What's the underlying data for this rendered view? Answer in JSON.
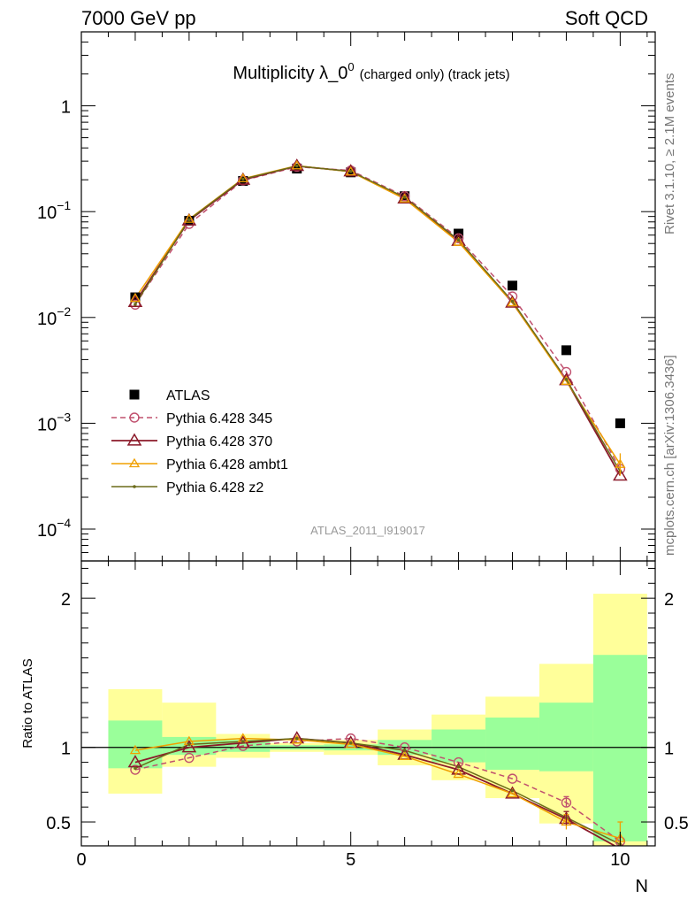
{
  "header": {
    "energy_label": "7000 GeV pp",
    "category_label": "Soft QCD"
  },
  "side_labels": {
    "rivet": "Rivet 3.1.10, ≥ 2.1M events",
    "mcplots": "mcplots.cern.ch [arXiv:1306.3436]"
  },
  "analysis_id": "ATLAS_2011_I919017",
  "colors": {
    "atlas": "#000000",
    "p345": "#c0506e",
    "p370": "#8b1a2a",
    "ambt1": "#f0a000",
    "z2": "#6b6b1a",
    "band_yellow": "#ffff9a",
    "band_green": "#9aff9a"
  },
  "chart_data": [
    {
      "type": "scatter",
      "title_main": "Multiplicity λ_0",
      "title_sup": "0",
      "title_small": "(charged only) (track jets)",
      "xlabel": "N",
      "ylabel": "",
      "yscale": "log",
      "xlim": [
        0,
        10.65
      ],
      "ylim": [
        5e-05,
        5
      ],
      "y_ticks": [
        {
          "value": 1,
          "base": "1",
          "exp": ""
        },
        {
          "value": 0.1,
          "base": "10",
          "exp": "−1"
        },
        {
          "value": 0.01,
          "base": "10",
          "exp": "−2"
        },
        {
          "value": 0.001,
          "base": "10",
          "exp": "−3"
        },
        {
          "value": 0.0001,
          "base": "10",
          "exp": "−4"
        }
      ],
      "x": [
        1,
        2,
        3,
        4,
        5,
        6,
        7,
        8,
        9,
        10
      ],
      "series": [
        {
          "name": "ATLAS",
          "key": "atlas",
          "values": [
            0.0155,
            0.082,
            0.195,
            0.255,
            0.235,
            0.14,
            0.062,
            0.02,
            0.0049,
            0.001
          ]
        },
        {
          "name": "Pythia 6.428 345",
          "key": "p345",
          "values": [
            0.0132,
            0.0765,
            0.197,
            0.265,
            0.245,
            0.14,
            0.056,
            0.0158,
            0.00305,
            0.00037
          ]
        },
        {
          "name": "Pythia 6.428 370",
          "key": "p370",
          "values": [
            0.014,
            0.0825,
            0.2,
            0.27,
            0.24,
            0.133,
            0.053,
            0.0138,
            0.00255,
            0.00032
          ]
        },
        {
          "name": "Pythia 6.428 ambt1",
          "key": "ambt1",
          "values": [
            0.0152,
            0.085,
            0.205,
            0.272,
            0.238,
            0.132,
            0.0515,
            0.0138,
            0.0025,
            0.00041
          ]
        },
        {
          "name": "Pythia 6.428 z2",
          "key": "z2",
          "values": [
            0.0133,
            0.084,
            0.203,
            0.27,
            0.24,
            0.137,
            0.054,
            0.0142,
            0.0026,
            0.00035
          ]
        }
      ]
    },
    {
      "type": "line",
      "xlabel": "N",
      "ylabel": "Ratio to ATLAS",
      "yscale": "linear",
      "xlim": [
        0,
        10.65
      ],
      "ylim": [
        0.34,
        2.25
      ],
      "x_ticks": [
        0,
        5,
        10
      ],
      "y_ticks": [
        0.5,
        1,
        2
      ],
      "y_tick_labels": [
        "0.5",
        "1",
        "2"
      ],
      "x": [
        1,
        2,
        3,
        4,
        5,
        6,
        7,
        8,
        9,
        10
      ],
      "bands": {
        "yellow": [
          [
            0.69,
            1.39
          ],
          [
            0.87,
            1.3
          ],
          [
            0.93,
            1.09
          ],
          [
            0.97,
            1.03
          ],
          [
            0.95,
            1.05
          ],
          [
            0.88,
            1.12
          ],
          [
            0.78,
            1.22
          ],
          [
            0.66,
            1.34
          ],
          [
            0.49,
            1.56
          ],
          [
            0.23,
            2.03
          ]
        ],
        "green": [
          [
            0.86,
            1.18
          ],
          [
            0.95,
            1.07
          ],
          [
            0.97,
            1.05
          ],
          [
            0.985,
            1.015
          ],
          [
            0.98,
            1.02
          ],
          [
            0.95,
            1.05
          ],
          [
            0.9,
            1.12
          ],
          [
            0.85,
            1.2
          ],
          [
            0.84,
            1.3
          ],
          [
            0.37,
            1.62
          ]
        ]
      },
      "series": [
        {
          "name": "Pythia 6.428 345",
          "key": "p345",
          "values": [
            0.85,
            0.93,
            1.01,
            1.04,
            1.06,
            1.0,
            0.9,
            0.79,
            0.63,
            0.37
          ]
        },
        {
          "name": "Pythia 6.428 370",
          "key": "p370",
          "values": [
            0.9,
            1.0,
            1.03,
            1.06,
            1.03,
            0.95,
            0.85,
            0.69,
            0.52,
            0.32
          ]
        },
        {
          "name": "Pythia 6.428 ambt1",
          "key": "ambt1",
          "values": [
            0.98,
            1.04,
            1.06,
            1.05,
            1.02,
            0.94,
            0.82,
            0.69,
            0.5,
            0.39
          ]
        },
        {
          "name": "Pythia 6.428 z2",
          "key": "z2",
          "values": [
            0.86,
            1.02,
            1.04,
            1.06,
            1.03,
            0.98,
            0.87,
            0.71,
            0.53,
            0.35
          ]
        }
      ]
    }
  ]
}
